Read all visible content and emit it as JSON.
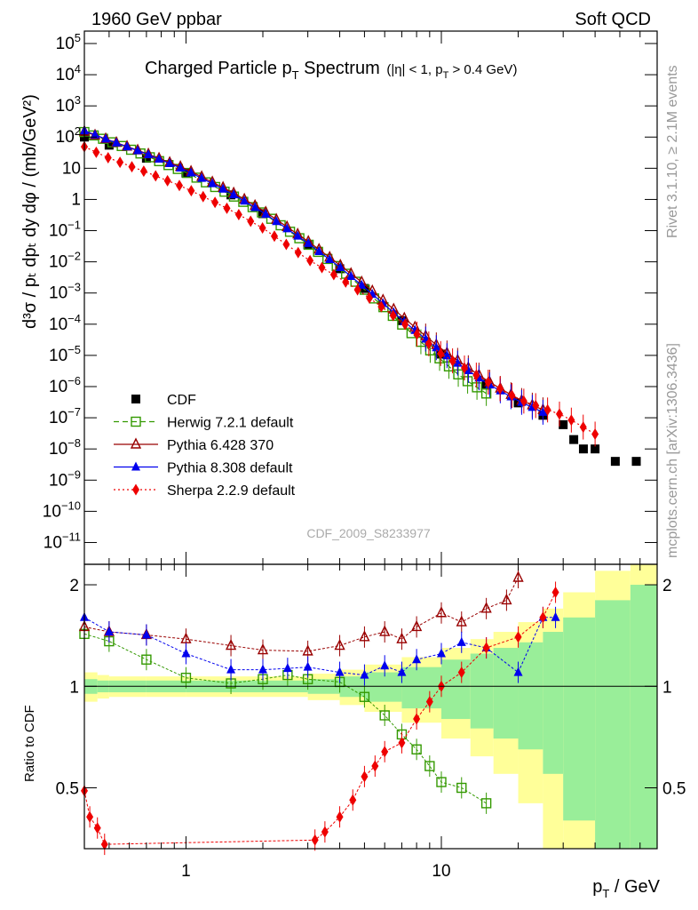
{
  "header": {
    "left": "1960 GeV ppbar",
    "right": "Soft QCD"
  },
  "side_labels": {
    "rivet": "Rivet 3.1.10, ≥ 2.1M events",
    "mcplots": "mcplots.cern.ch [arXiv:1306.3436]"
  },
  "watermark": "CDF_2009_S8233977",
  "chart_data": {
    "type": "scatter",
    "title": "Charged Particle pT Spectrum (|η| < 1, pT > 0.4 GeV)",
    "title_main": "Charged Particle p",
    "title_main_sub": "T",
    "title_main_end": " Spectrum",
    "title_cut": "(|η| < 1, p",
    "title_cut_sub": "T",
    "title_cut_end": " > 0.4 GeV)",
    "xlabel": "pT / GeV",
    "xlabel_main": "p",
    "xlabel_sub": "T",
    "xlabel_end": " / GeV",
    "ylabel": "d³σ / pT dpT dy dφ / (mb/GeV²)",
    "ylabel_text": "d³σ / pₜ dpₜ dy dφ / (mb/GeV²)",
    "ratio_ylabel": "Ratio to CDF",
    "x_scale": "log",
    "y_scale": "log",
    "xlim": [
      0.4,
      70
    ],
    "ylim": [
      2e-12,
      250000.0
    ],
    "ratio_ylim": [
      0.33,
      2.3
    ],
    "x_ticklabels": [
      "1",
      "10"
    ],
    "x_tickvalues": [
      1,
      10
    ],
    "y_tickvalues": [
      100000.0,
      10000.0,
      1000.0,
      100.0,
      10,
      1,
      0.1,
      0.01,
      0.001,
      0.0001,
      1e-05,
      1e-06,
      1e-07,
      1e-08,
      1e-09,
      1e-10,
      1e-11
    ],
    "y_ticklabels": [
      {
        "base": "10",
        "exp": "5"
      },
      {
        "base": "10",
        "exp": "4"
      },
      {
        "base": "10",
        "exp": "3"
      },
      {
        "base": "10",
        "exp": "2"
      },
      {
        "base": "10",
        "exp": ""
      },
      {
        "base": "1",
        "exp": ""
      },
      {
        "base": "10",
        "exp": "−1"
      },
      {
        "base": "10",
        "exp": "−2"
      },
      {
        "base": "10",
        "exp": "−3"
      },
      {
        "base": "10",
        "exp": "−4"
      },
      {
        "base": "10",
        "exp": "−5"
      },
      {
        "base": "10",
        "exp": "−6"
      },
      {
        "base": "10",
        "exp": "−7"
      },
      {
        "base": "10",
        "exp": "−8"
      },
      {
        "base": "10",
        "exp": "−9"
      },
      {
        "base": "10",
        "exp": "−10"
      },
      {
        "base": "10",
        "exp": "−11"
      }
    ],
    "ratio_ticks": [
      {
        "value": 2,
        "label": "2"
      },
      {
        "value": 1,
        "label": "1"
      },
      {
        "value": 0.5,
        "label": "0.5"
      }
    ],
    "legend_position": "bottom-left",
    "series": [
      {
        "name": "CDF",
        "color": "#000000",
        "marker": "filled-square",
        "x": [
          0.4,
          0.5,
          0.7,
          1.0,
          1.5,
          2.0,
          3.0,
          4.0,
          5.0,
          7.0,
          10.0,
          15.0,
          20.0,
          25.0,
          30.0,
          33.0,
          36.0,
          40.0,
          48.0,
          58.0
        ],
        "y": [
          100,
          55,
          21,
          7,
          1.4,
          0.35,
          0.035,
          0.006,
          0.0014,
          0.00013,
          1.1e-05,
          1.2e-06,
          3e-07,
          1.2e-07,
          6e-08,
          2e-08,
          1e-08,
          1e-08,
          4e-09,
          4e-09
        ]
      },
      {
        "name": "Herwig 7.2.1 default",
        "color": "#339900",
        "marker": "open-square",
        "line": "dashed",
        "x": [
          0.4,
          0.5,
          0.7,
          1.0,
          1.5,
          2.0,
          3.0,
          4.0,
          5.0,
          7.0,
          9.0,
          12.0,
          15.0
        ],
        "y": [
          145,
          75,
          25,
          7.4,
          1.4,
          0.37,
          0.037,
          0.0062,
          0.0013,
          0.0001,
          1.5e-05,
          2e-06,
          6e-07
        ]
      },
      {
        "name": "Pythia 6.428 370",
        "color": "#990000",
        "marker": "open-triangle",
        "line": "solid",
        "x": [
          0.4,
          0.5,
          0.7,
          1.0,
          1.5,
          2.0,
          3.0,
          4.0,
          5.0,
          7.0,
          10.0,
          15.0,
          20.0,
          25.0
        ],
        "y": [
          150,
          80,
          30,
          9.5,
          1.8,
          0.45,
          0.046,
          0.008,
          0.0019,
          0.00018,
          1.6e-05,
          1.6e-06,
          4e-07,
          1.8e-07
        ]
      },
      {
        "name": "Pythia 8.308 default",
        "color": "#0000ee",
        "marker": "filled-triangle",
        "line": "solid",
        "x": [
          0.4,
          0.5,
          0.7,
          1.0,
          1.5,
          2.0,
          3.0,
          4.0,
          5.0,
          7.0,
          10.0,
          15.0,
          20.0,
          25.0
        ],
        "y": [
          160,
          79,
          29,
          8.6,
          1.6,
          0.39,
          0.04,
          0.0068,
          0.0015,
          0.00014,
          1.3e-05,
          1.3e-06,
          3.5e-07,
          1.5e-07
        ]
      },
      {
        "name": "Sherpa 2.2.9 default",
        "color": "#ee0000",
        "marker": "filled-diamond",
        "line": "dotted",
        "x": [
          0.4,
          0.5,
          0.7,
          1.0,
          1.5,
          2.0,
          3.0,
          4.0,
          5.0,
          7.0,
          10.0,
          15.0,
          20.0,
          25.0,
          30.0,
          40.0
        ],
        "y": [
          49,
          21,
          7.5,
          2.3,
          0.45,
          0.12,
          0.012,
          0.003,
          0.0009,
          0.00012,
          1.1e-05,
          1.5e-06,
          4e-07,
          2e-07,
          1.2e-07,
          3e-08
        ]
      }
    ],
    "ratio_series": [
      {
        "name": "Herwig 7.2.1 default",
        "x": [
          0.4,
          0.5,
          0.7,
          1.0,
          1.5,
          2.0,
          2.5,
          3.0,
          4.0,
          5.0,
          6.0,
          7.0,
          8.0,
          9.0,
          10.0,
          12.0,
          15.0
        ],
        "y": [
          1.43,
          1.36,
          1.2,
          1.06,
          1.02,
          1.05,
          1.08,
          1.05,
          1.03,
          0.93,
          0.82,
          0.72,
          0.65,
          0.58,
          0.52,
          0.5,
          0.45
        ]
      },
      {
        "name": "Pythia 6.428 370",
        "x": [
          0.4,
          0.5,
          0.7,
          1.0,
          1.5,
          2.0,
          3.0,
          4.0,
          5.0,
          6.0,
          7.0,
          8.0,
          10.0,
          12.0,
          15.0,
          18.0,
          20.0
        ],
        "y": [
          1.5,
          1.45,
          1.42,
          1.38,
          1.32,
          1.28,
          1.27,
          1.32,
          1.4,
          1.45,
          1.38,
          1.5,
          1.65,
          1.55,
          1.7,
          1.8,
          2.1
        ]
      },
      {
        "name": "Pythia 8.308 default",
        "x": [
          0.4,
          0.5,
          0.7,
          1.0,
          1.5,
          2.0,
          2.5,
          3.0,
          4.0,
          5.0,
          6.0,
          7.0,
          8.0,
          10.0,
          12.0,
          15.0,
          20.0,
          25.0,
          28.0
        ],
        "y": [
          1.6,
          1.45,
          1.42,
          1.25,
          1.12,
          1.12,
          1.13,
          1.14,
          1.1,
          1.08,
          1.15,
          1.1,
          1.2,
          1.25,
          1.35,
          1.3,
          1.1,
          1.6,
          1.6
        ]
      },
      {
        "name": "Sherpa 2.2.9 default",
        "x": [
          0.4,
          0.42,
          0.45,
          0.48,
          3.2,
          3.5,
          4.0,
          4.5,
          5.0,
          5.5,
          6.0,
          7.0,
          8.0,
          9.0,
          10.0,
          12.0,
          15.0,
          20.0,
          25.0,
          28.0
        ],
        "y": [
          0.49,
          0.41,
          0.38,
          0.34,
          0.35,
          0.37,
          0.41,
          0.46,
          0.54,
          0.58,
          0.64,
          0.68,
          0.8,
          0.9,
          1.0,
          1.1,
          1.3,
          1.4,
          1.6,
          1.9
        ]
      }
    ],
    "ratio_bands": {
      "green_halfwidth": [
        0.05,
        0.04,
        0.04,
        0.04,
        0.04,
        0.04,
        0.04,
        0.05,
        0.07,
        0.1,
        0.14,
        0.2,
        0.25,
        0.3,
        0.35,
        0.45,
        0.6,
        0.8,
        1.0
      ],
      "yellow_halfwidth": [
        0.1,
        0.08,
        0.07,
        0.07,
        0.07,
        0.07,
        0.07,
        0.09,
        0.12,
        0.16,
        0.22,
        0.3,
        0.38,
        0.45,
        0.55,
        0.7,
        0.9,
        1.2,
        1.4
      ],
      "x_edges": [
        0.4,
        0.45,
        0.5,
        0.7,
        1.0,
        1.5,
        2.0,
        3.0,
        4.0,
        5.0,
        7.0,
        10.0,
        13.0,
        16.0,
        20.0,
        25.0,
        30.0,
        40.0,
        55.0,
        70.0
      ]
    }
  }
}
